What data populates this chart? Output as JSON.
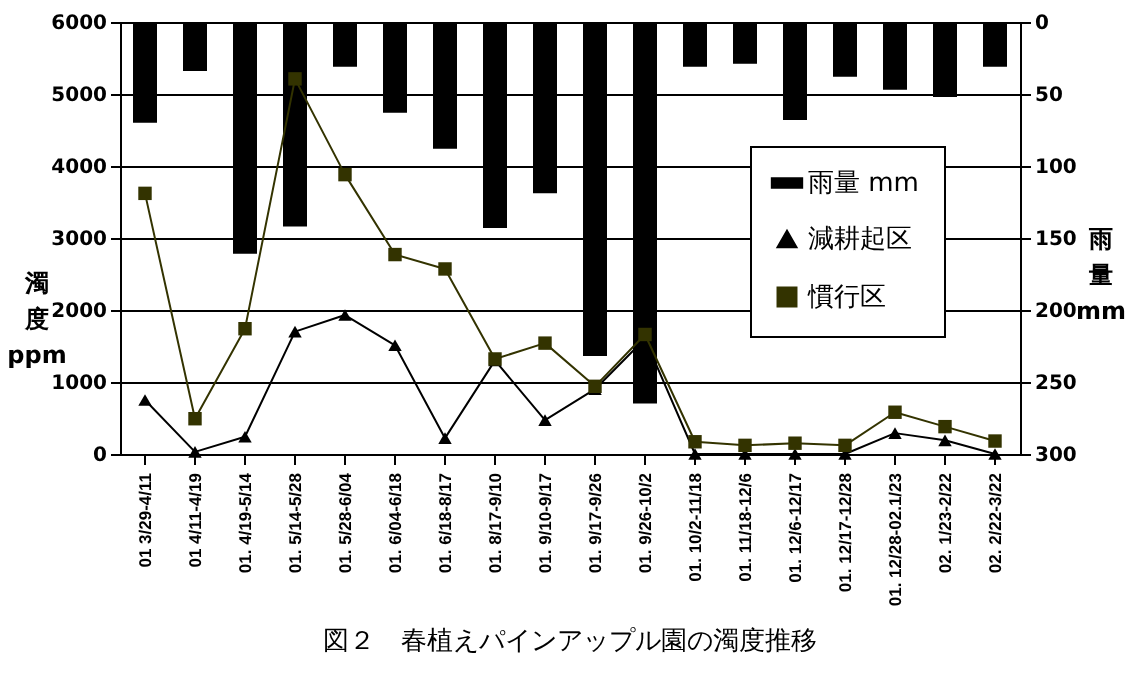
{
  "chart_data": {
    "type": "line",
    "title": "図２　春植えパインアップル園の濁度推移",
    "ylabel": "濁度 ppm",
    "y2label": "雨量 mm",
    "categories": [
      "01 3/29-4/11",
      "01 4/11-4/19",
      "01. 4/19-5/14",
      "01. 5/14-5/28",
      "01. 5/28-6/04",
      "01. 6/04-6/18",
      "01. 6/18-8/17",
      "01. 8/17-9/10",
      "01. 9/10-9/17",
      "01. 9/17-9/26",
      "01. 9/26-10/2",
      "01. 10/2-11/18",
      "01. 11/18-12/6",
      "01. 12/6-12/17",
      "01. 12/17-12/28",
      "01. 12/28-02.1/23",
      "02. 1/23-2/22",
      "02. 2/22-3/22"
    ],
    "series": [
      {
        "name": "雨量 mm",
        "type": "bar",
        "axis": "y2",
        "color": "#000000",
        "values": [
          70,
          34,
          161,
          142,
          31,
          63,
          88,
          143,
          119,
          232,
          265,
          31,
          29,
          68,
          38,
          47,
          52,
          31
        ]
      },
      {
        "name": "減耕起区",
        "marker": "triangle",
        "color": "#000000",
        "values": [
          750,
          30,
          240,
          1700,
          1930,
          1510,
          220,
          1300,
          470,
          900,
          1600,
          0,
          0,
          0,
          0,
          290,
          190,
          0
        ]
      },
      {
        "name": "慣行区",
        "marker": "square",
        "color": "#333300",
        "values": [
          3620,
          490,
          1740,
          5210,
          3880,
          2770,
          2570,
          1320,
          1540,
          940,
          1660,
          170,
          120,
          150,
          120,
          580,
          380,
          180
        ]
      }
    ],
    "ylim": [
      0,
      6000
    ],
    "yticks": [
      0,
      1000,
      2000,
      3000,
      4000,
      5000,
      6000
    ],
    "y2lim": [
      300,
      0
    ],
    "y2ticks": [
      0,
      50,
      100,
      150,
      200,
      250,
      300
    ],
    "grid": "y",
    "legend": "right"
  }
}
